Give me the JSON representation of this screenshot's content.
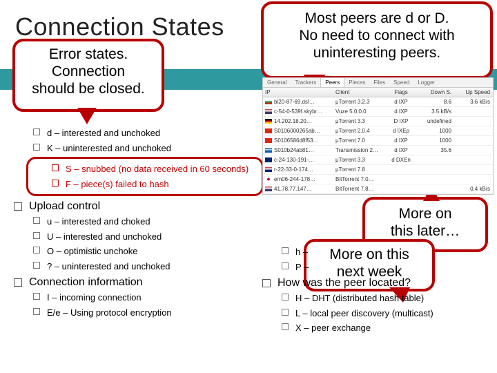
{
  "title": "Connection States",
  "callouts": {
    "peers_note": "Most peers are d or D.\nNo need to connect with\nuninteresting peers.",
    "error_note": "Error states.\nConnection\nshould be closed.",
    "more_later": "More on\nthis later…",
    "more_week": "More on this\nnext week"
  },
  "sections": {
    "download_partial": {
      "items": [
        "d – interested and unchoked",
        "K – uninterested and unchoked"
      ]
    },
    "error_items": [
      "S – snubbed (no data received in 60 seconds)",
      "F – piece(s) failed to hash"
    ],
    "upload": {
      "title": "Upload control",
      "items": [
        "u – interested and choked",
        "U – interested and unchoked",
        "O – optimistic unchoke",
        "? – uninterested and unchoked"
      ]
    },
    "conninfo": {
      "title": "Connection information",
      "items": [
        "I – incoming connection",
        "E/e – Using protocol encryption"
      ]
    },
    "right_partial": [
      "h –",
      "P –"
    ],
    "located": {
      "title": "How was the peer located?",
      "items": [
        "H – DHT (distributed hash table)",
        "L – local peer discovery (multicast)",
        "X – peer exchange"
      ]
    }
  },
  "peer_table": {
    "tabs": [
      "General",
      "Trackers",
      "Peers",
      "Pieces",
      "Files",
      "Speed",
      "Logger"
    ],
    "active_tab": 2,
    "columns": [
      "IP",
      "Client",
      "Flags",
      "Down S.",
      "Up Speed"
    ],
    "rows": [
      {
        "flag": "f-bg",
        "ip": "bl20-87-69.dsl…",
        "client": "μTorrent 3.2.3",
        "flags": "d IXP",
        "down": "8.6",
        "up": "3.6 kB/s"
      },
      {
        "flag": "f-us",
        "ip": "c-54-0-539f.skybr…",
        "client": "Vuze 5.0.0.0",
        "flags": "d IXP",
        "down": "3.5 kB/s",
        "up": ""
      },
      {
        "flag": "f-de",
        "ip": "14.202.18.20…",
        "client": "μTorrent 3.3",
        "flags": "D IXP",
        "up": ""
      },
      {
        "flag": "f-cn",
        "ip": "S0106000265ab…",
        "client": "μTorrent 2.0.4",
        "flags": "d IXEp",
        "down": "1000",
        "up": ""
      },
      {
        "flag": "f-cn",
        "ip": "S0106586d8f53…",
        "client": "μTorrent 7.0",
        "flags": "d IXP",
        "down": "1000",
        "up": ""
      },
      {
        "flag": "f-gr",
        "ip": "S010b24ab81…",
        "client": "Transmission 2…",
        "flags": "d IXP",
        "down": "35.6",
        "up": ""
      },
      {
        "flag": "f-au",
        "ip": "c-24-130-191-…",
        "client": "μTorrent 3.3",
        "flags": "d DXEn",
        "down": "",
        "up": ""
      },
      {
        "flag": "f-gb",
        "ip": "r-22-33-0-174…",
        "client": "μTorrent 7.8",
        "flags": "",
        "down": "",
        "up": ""
      },
      {
        "flag": "f-jp",
        "ip": "em06-244-178…",
        "client": "BitTorrent 7.0…",
        "flags": "",
        "down": "",
        "up": ""
      },
      {
        "flag": "f-us",
        "ip": "41.78.77.147…",
        "client": "BitTorrent 7.8…",
        "flags": "",
        "down": "",
        "up": "0.4 kB/s"
      }
    ]
  },
  "colors": {
    "callout_border": "#b80000",
    "teal_bar": "#2e9aa0"
  }
}
